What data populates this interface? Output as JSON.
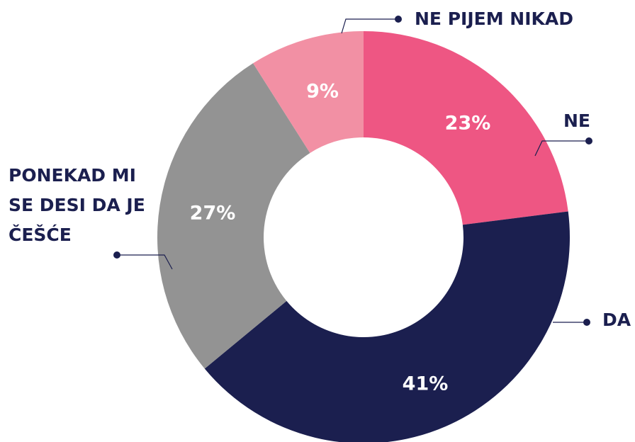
{
  "chart_data": {
    "type": "donut",
    "categories": [
      "NE",
      "DA",
      "PONEKAD MI SE DESI DA JE ČEŠĆE",
      "NE PIJEM NIKAD"
    ],
    "values": [
      23,
      41,
      27,
      9
    ],
    "value_labels": [
      "23%",
      "41%",
      "27%",
      "9%"
    ],
    "colors": [
      "#ee5683",
      "#1b1f4f",
      "#939393",
      "#f290a4"
    ]
  }
}
